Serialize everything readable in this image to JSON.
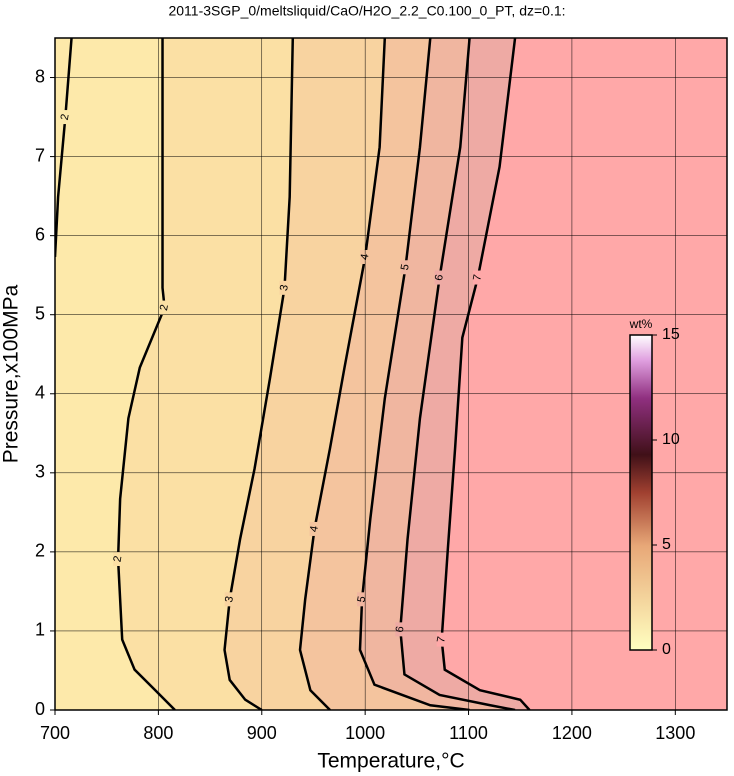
{
  "chart_data": {
    "type": "contour",
    "title": "2011-3SGP_0/meltsliquid/CaO/H2O_2.2_C0.100_0_PT, dz=0.1:",
    "x_label": "Temperature,°C",
    "y_label": "Pressure,x100MPa",
    "xlim": [
      700,
      1350
    ],
    "xticks": [
      700,
      800,
      900,
      1000,
      1100,
      1200,
      1300
    ],
    "ylim": [
      0,
      8.5
    ],
    "yticks": [
      0,
      1,
      2,
      3,
      4,
      5,
      6,
      7,
      8
    ],
    "grid": true,
    "background_color": "#fde9aa",
    "contours": [
      {
        "level": 2,
        "color": "#fde9aa",
        "x": [
          716,
          710,
          703,
          700
        ],
        "y": [
          8.5,
          7.5,
          6.49,
          5.73
        ]
      },
      {
        "level": 2,
        "color": "#fbe0a4",
        "x": [
          804,
          804,
          806,
          782,
          771,
          763,
          761,
          765,
          777,
          797,
          816
        ],
        "y": [
          8.5,
          5.34,
          5.09,
          4.33,
          3.69,
          2.67,
          1.91,
          0.89,
          0.51,
          0.25,
          0
        ]
      },
      {
        "level": 3,
        "color": "#f8d3a0",
        "x": [
          930,
          927,
          922,
          908,
          893,
          879,
          869,
          864,
          869,
          884,
          900
        ],
        "y": [
          8.5,
          6.49,
          5.34,
          4.2,
          3.05,
          2.16,
          1.4,
          0.76,
          0.38,
          0.13,
          0
        ]
      },
      {
        "level": 4,
        "color": "#f4c49e",
        "x": [
          1019,
          1014,
          1000,
          980,
          966,
          951,
          942,
          937,
          947,
          966
        ],
        "y": [
          8.5,
          7.12,
          5.73,
          4.33,
          3.31,
          2.29,
          1.4,
          0.76,
          0.25,
          0
        ]
      },
      {
        "level": 5,
        "color": "#f0b6a0",
        "x": [
          1063,
          1053,
          1039,
          1019,
          1005,
          997,
          995,
          1009,
          1063,
          1101
        ],
        "y": [
          8.5,
          7.12,
          5.6,
          3.94,
          2.42,
          1.4,
          0.76,
          0.32,
          0.06,
          0
        ]
      },
      {
        "level": 6,
        "color": "#eeaaa4",
        "x": [
          1101,
          1092,
          1072,
          1053,
          1041,
          1034,
          1038,
          1072,
          1121,
          1145
        ],
        "y": [
          8.5,
          7.12,
          5.47,
          3.69,
          2.16,
          1.02,
          0.45,
          0.19,
          0.06,
          0
        ]
      },
      {
        "level": 7,
        "color": "#ffa8a8",
        "x": [
          1145,
          1130,
          1109,
          1094,
          1087,
          1080,
          1074,
          1077,
          1111,
          1150,
          1159
        ],
        "y": [
          8.5,
          6.87,
          5.47,
          4.71,
          3.31,
          2.04,
          0.89,
          0.51,
          0.25,
          0.13,
          0
        ]
      }
    ],
    "colorbar": {
      "label": "wt%",
      "lim": [
        0,
        15
      ],
      "ticks": [
        0,
        5,
        10,
        15
      ]
    }
  }
}
